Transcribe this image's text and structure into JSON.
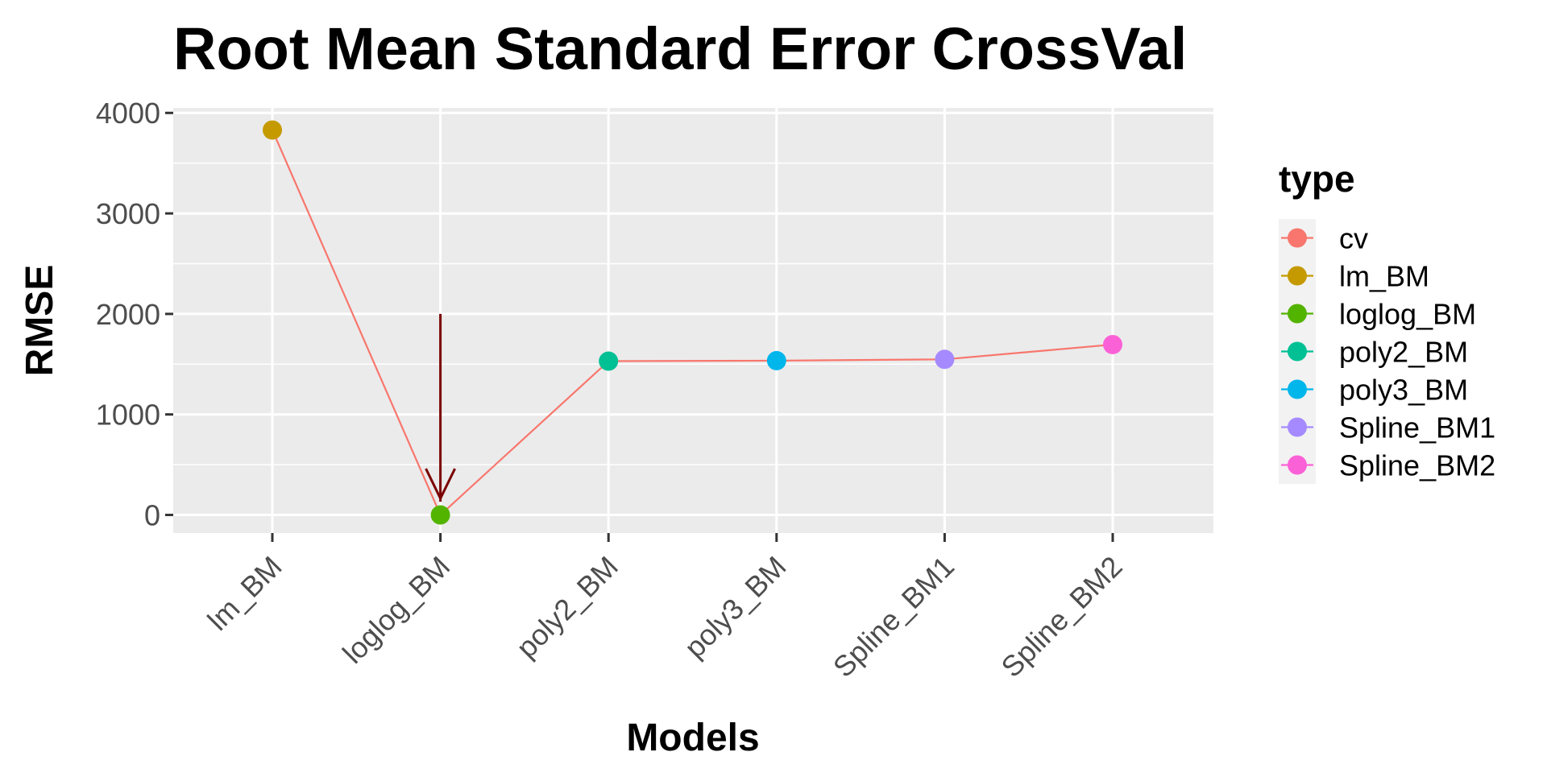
{
  "chart_data": {
    "type": "line",
    "title": "Root Mean Standard Error CrossVal",
    "xlabel": "Models",
    "ylabel": "RMSE",
    "categories": [
      "lm_BM",
      "loglog_BM",
      "poly2_BM",
      "poly3_BM",
      "Spline_BM1",
      "Spline_BM2"
    ],
    "ylim": [
      -180,
      4050
    ],
    "yticks": [
      0,
      1000,
      2000,
      3000,
      4000
    ],
    "grid": true,
    "legend_position": "right",
    "line": {
      "name": "cv",
      "color": "#F8766D",
      "values": [
        3830,
        0,
        1530,
        1535,
        1548,
        1695
      ]
    },
    "points": [
      {
        "name": "lm_BM",
        "category": "lm_BM",
        "value": 3830,
        "color": "#C49A00"
      },
      {
        "name": "loglog_BM",
        "category": "loglog_BM",
        "value": 0,
        "color": "#53B400"
      },
      {
        "name": "poly2_BM",
        "category": "poly2_BM",
        "value": 1530,
        "color": "#00C094"
      },
      {
        "name": "poly3_BM",
        "category": "poly3_BM",
        "value": 1535,
        "color": "#00B6EB"
      },
      {
        "name": "Spline_BM1",
        "category": "Spline_BM1",
        "value": 1548,
        "color": "#A58AFF"
      },
      {
        "name": "Spline_BM2",
        "category": "Spline_BM2",
        "value": 1695,
        "color": "#FB61D7"
      }
    ],
    "legend": {
      "title": "type",
      "items": [
        {
          "label": "cv",
          "color": "#F8766D"
        },
        {
          "label": "lm_BM",
          "color": "#C49A00"
        },
        {
          "label": "loglog_BM",
          "color": "#53B400"
        },
        {
          "label": "poly2_BM",
          "color": "#00C094"
        },
        {
          "label": "poly3_BM",
          "color": "#00B6EB"
        },
        {
          "label": "Spline_BM1",
          "color": "#A58AFF"
        },
        {
          "label": "Spline_BM2",
          "color": "#FB61D7"
        }
      ]
    },
    "annotations": [
      {
        "type": "arrow",
        "category": "loglog_BM",
        "from_value": 2000,
        "to_value": 180,
        "color": "#7B0000"
      }
    ]
  }
}
